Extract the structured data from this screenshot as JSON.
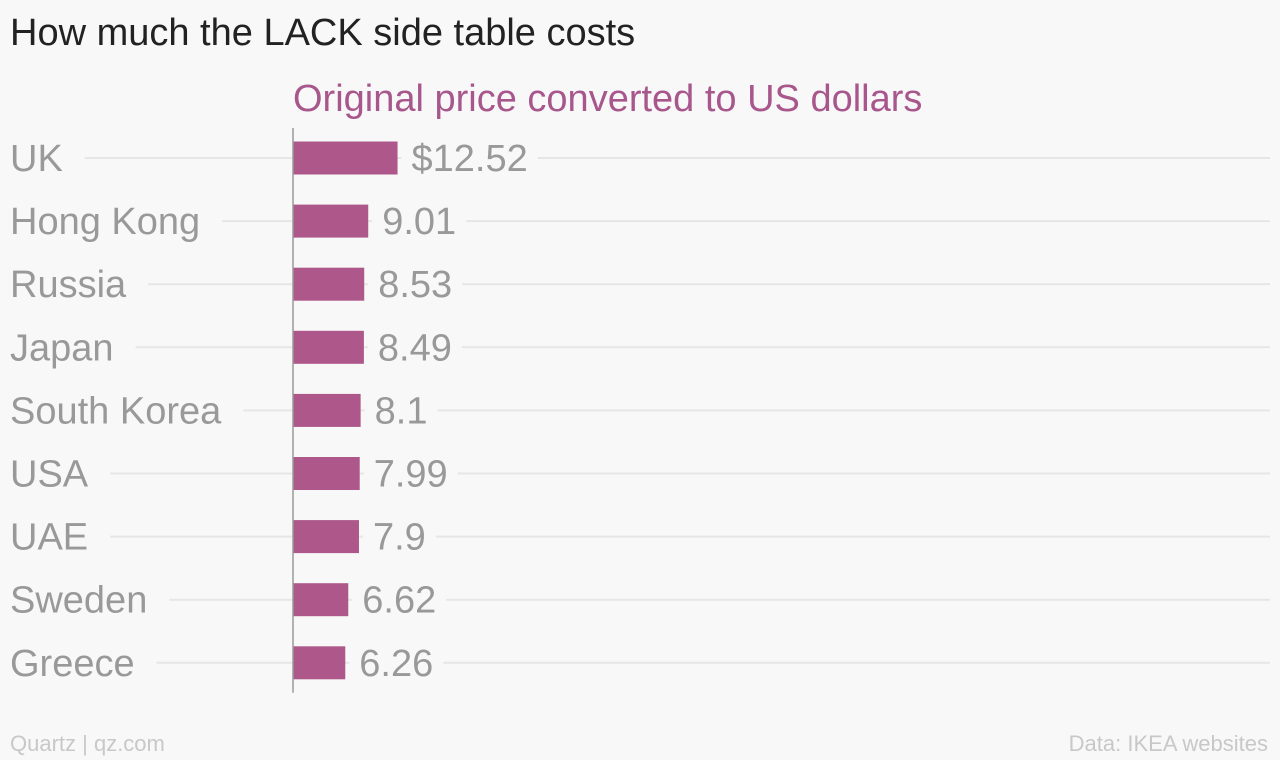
{
  "title": "How much the LACK side table costs",
  "footer": {
    "source_left": "Quartz | qz.com",
    "source_right": "Data: IKEA websites"
  },
  "chart_data": {
    "type": "bar",
    "orientation": "horizontal",
    "series_label": "Original price converted to US dollars",
    "series_label_color": "#a8578c",
    "bar_color": "#ad578a",
    "value_prefix_first": "$",
    "grid": true,
    "categories": [
      "UK",
      "Hong Kong",
      "Russia",
      "Japan",
      "South Korea",
      "USA",
      "UAE",
      "Sweden",
      "Greece"
    ],
    "values": [
      12.52,
      9.01,
      8.53,
      8.49,
      8.1,
      7.99,
      7.9,
      6.62,
      6.26
    ],
    "value_labels": [
      "$12.52",
      "9.01",
      "8.53",
      "8.49",
      "8.1",
      "7.99",
      "7.9",
      "6.62",
      "6.26"
    ]
  }
}
